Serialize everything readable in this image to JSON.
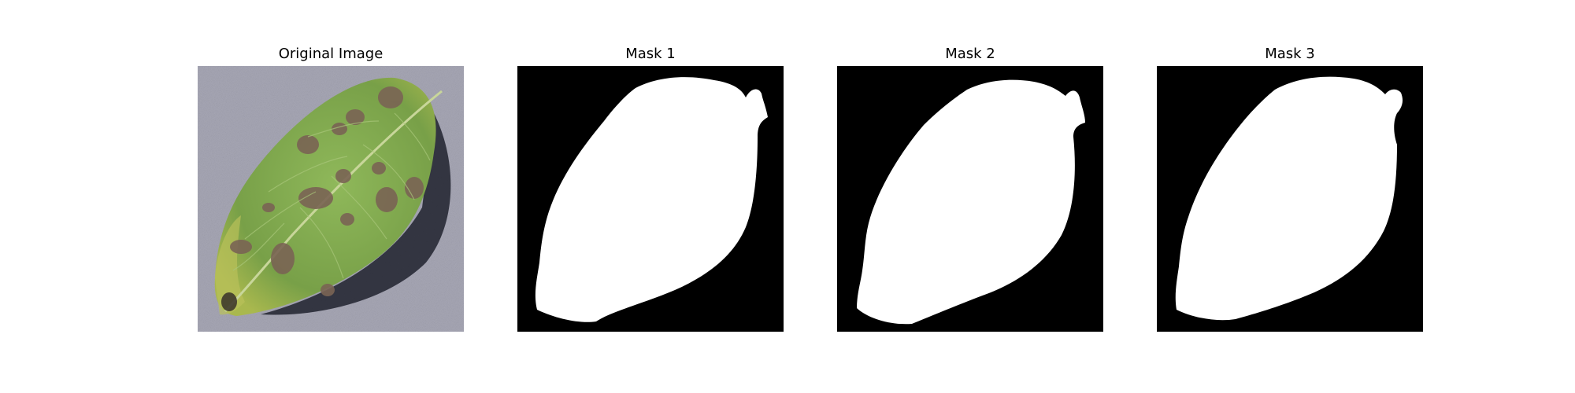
{
  "panels": [
    {
      "title": "Original Image",
      "kind": "photo"
    },
    {
      "title": "Mask 1",
      "kind": "mask"
    },
    {
      "title": "Mask 2",
      "kind": "mask"
    },
    {
      "title": "Mask 3",
      "kind": "mask"
    }
  ],
  "colors": {
    "background": "#ffffff",
    "mask_background": "#000000",
    "mask_foreground": "#ffffff",
    "photo_backdrop": "#a8a8b6",
    "leaf_green": "#7fa84e",
    "lesion_brown": "#7a6454"
  }
}
